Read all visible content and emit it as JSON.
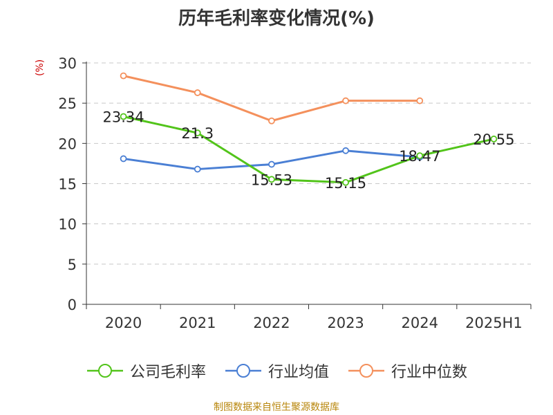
{
  "title": "历年毛利率变化情况(%)",
  "y_unit_label": "(%)",
  "source": "制图数据来自恒生聚源数据库",
  "chart_data": {
    "type": "line",
    "title": "历年毛利率变化情况(%)",
    "categories": [
      "2020",
      "2021",
      "2022",
      "2023",
      "2024",
      "2025H1"
    ],
    "ylim": [
      0,
      30
    ],
    "yticks": [
      0,
      5,
      10,
      15,
      20,
      25,
      30
    ],
    "grid": true,
    "legend_position": "bottom",
    "series": [
      {
        "name": "公司毛利率",
        "color": "#52c41a",
        "values": [
          23.34,
          21.3,
          15.53,
          15.15,
          18.47,
          20.55
        ],
        "labels": [
          "23.34",
          "21.3",
          "15.53",
          "15.15",
          "18.47",
          "20.55"
        ]
      },
      {
        "name": "行业均值",
        "color": "#4a7fd4",
        "values": [
          18.1,
          16.8,
          17.4,
          19.1,
          18.3,
          null
        ]
      },
      {
        "name": "行业中位数",
        "color": "#f4905c",
        "values": [
          28.4,
          26.3,
          22.8,
          25.3,
          25.3,
          null
        ]
      }
    ]
  }
}
